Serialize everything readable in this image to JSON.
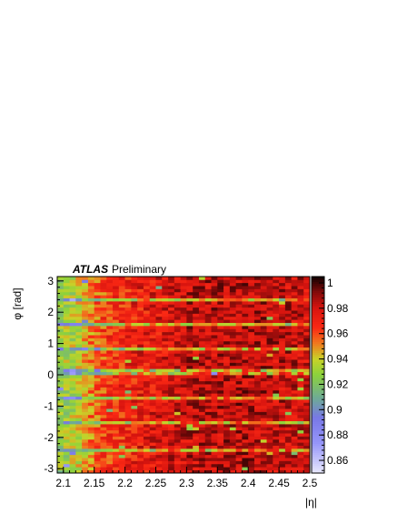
{
  "chart_data": {
    "type": "heatmap",
    "title": "",
    "experiment": "ATLAS",
    "status": "Preliminary",
    "xlabel": "|η|",
    "ylabel": "φ [rad]",
    "xlim": [
      2.09,
      2.5
    ],
    "ylim": [
      -3.14,
      3.14
    ],
    "zlim": [
      0.85,
      1.005
    ],
    "x_ticks": [
      2.1,
      2.15,
      2.2,
      2.25,
      2.3,
      2.35,
      2.4,
      2.45,
      2.5
    ],
    "x_tick_labels": [
      "2.1",
      "2.15",
      "2.2",
      "2.25",
      "2.3",
      "2.35",
      "2.4",
      "2.45",
      "2.5"
    ],
    "y_ticks": [
      -3,
      -2,
      -1,
      0,
      1,
      2,
      3
    ],
    "y_tick_labels": [
      "-3",
      "-2",
      "-1",
      "0",
      "1",
      "2",
      "3"
    ],
    "z_ticks": [
      0.86,
      0.88,
      0.9,
      0.92,
      0.94,
      0.96,
      0.98,
      1.0
    ],
    "z_tick_labels": [
      "0.86",
      "0.88",
      "0.9",
      "0.92",
      "0.94",
      "0.96",
      "0.98",
      "1"
    ],
    "n_eta_bins": 41,
    "n_phi_bins": 64,
    "eta_profile": [
      {
        "eta": 2.09,
        "efficiency": 0.925
      },
      {
        "eta": 2.12,
        "efficiency": 0.935
      },
      {
        "eta": 2.15,
        "efficiency": 0.955
      },
      {
        "eta": 2.18,
        "efficiency": 0.965
      },
      {
        "eta": 2.22,
        "efficiency": 0.972
      },
      {
        "eta": 2.3,
        "efficiency": 0.982
      },
      {
        "eta": 2.4,
        "efficiency": 0.985
      },
      {
        "eta": 2.5,
        "efficiency": 0.98
      }
    ],
    "low_efficiency_phi_rows": [
      -2.4,
      -1.5,
      -0.7,
      0.1,
      0.8,
      1.6,
      2.4
    ],
    "colorbar": "ROOT rainbow palette"
  }
}
